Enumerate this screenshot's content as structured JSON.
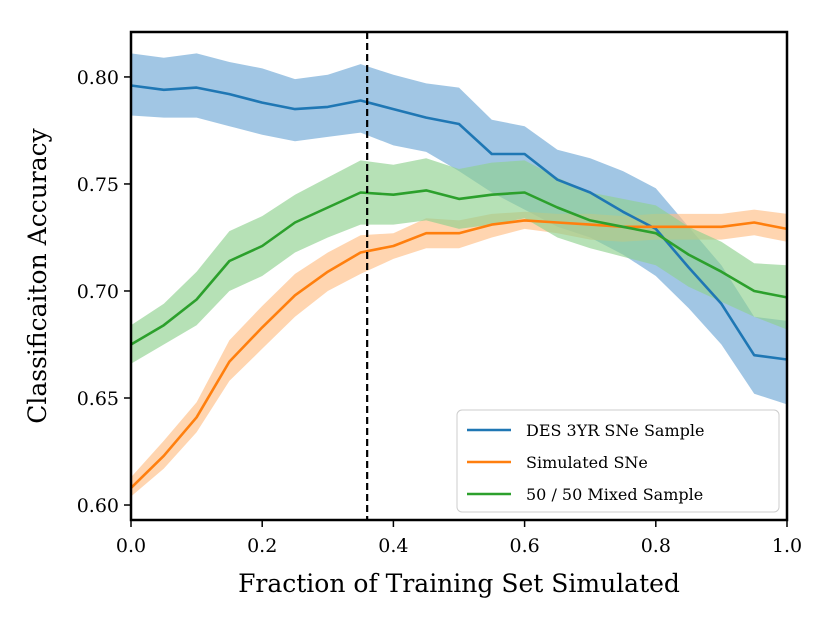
{
  "chart_data": {
    "type": "line",
    "title": "",
    "xlabel": "Fraction of Training Set Simulated",
    "ylabel": "Classificaiton Accuracy",
    "xlim": [
      0.0,
      1.0
    ],
    "ylim": [
      0.593,
      0.821
    ],
    "xticks": [
      0.0,
      0.2,
      0.4,
      0.6,
      0.8,
      1.0
    ],
    "xtick_labels": [
      "0.0",
      "0.2",
      "0.4",
      "0.6",
      "0.8",
      "1.0"
    ],
    "yticks": [
      0.6,
      0.65,
      0.7,
      0.75,
      0.8
    ],
    "ytick_labels": [
      "0.60",
      "0.65",
      "0.70",
      "0.75",
      "0.80"
    ],
    "grid": false,
    "legend_position": "lower-right",
    "vline": {
      "x": 0.36,
      "style": "dashed",
      "color": "#000000"
    },
    "x": [
      0.0,
      0.05,
      0.1,
      0.15,
      0.2,
      0.25,
      0.3,
      0.35,
      0.4,
      0.45,
      0.5,
      0.55,
      0.6,
      0.65,
      0.7,
      0.75,
      0.8,
      0.85,
      0.9,
      0.95,
      1.0
    ],
    "series": [
      {
        "name": "DES 3YR SNe Sample",
        "color": "#1f77b4",
        "fill_color": "#6fa8d6",
        "values": [
          0.796,
          0.794,
          0.795,
          0.792,
          0.788,
          0.785,
          0.786,
          0.789,
          0.785,
          0.781,
          0.778,
          0.764,
          0.764,
          0.752,
          0.746,
          0.737,
          0.729,
          0.711,
          0.694,
          0.67,
          0.668
        ],
        "lower": [
          0.782,
          0.781,
          0.781,
          0.777,
          0.773,
          0.77,
          0.772,
          0.774,
          0.768,
          0.765,
          0.756,
          0.746,
          0.738,
          0.73,
          0.725,
          0.717,
          0.707,
          0.692,
          0.675,
          0.652,
          0.647
        ],
        "upper": [
          0.811,
          0.809,
          0.811,
          0.807,
          0.804,
          0.799,
          0.801,
          0.806,
          0.801,
          0.797,
          0.795,
          0.78,
          0.777,
          0.766,
          0.762,
          0.756,
          0.748,
          0.73,
          0.712,
          0.688,
          0.686
        ]
      },
      {
        "name": "Simulated SNe",
        "color": "#ff7f0e",
        "fill_color": "#ffbf86",
        "values": [
          0.608,
          0.623,
          0.641,
          0.667,
          0.683,
          0.698,
          0.709,
          0.718,
          0.721,
          0.727,
          0.727,
          0.731,
          0.733,
          0.732,
          0.731,
          0.73,
          0.73,
          0.73,
          0.73,
          0.732,
          0.729
        ],
        "lower": [
          0.604,
          0.617,
          0.634,
          0.658,
          0.673,
          0.688,
          0.7,
          0.708,
          0.715,
          0.72,
          0.72,
          0.725,
          0.729,
          0.727,
          0.724,
          0.723,
          0.724,
          0.724,
          0.724,
          0.726,
          0.723
        ],
        "upper": [
          0.613,
          0.63,
          0.648,
          0.677,
          0.693,
          0.708,
          0.718,
          0.726,
          0.727,
          0.734,
          0.733,
          0.736,
          0.737,
          0.736,
          0.736,
          0.735,
          0.736,
          0.736,
          0.736,
          0.738,
          0.736
        ]
      },
      {
        "name": "50 / 50 Mixed Sample",
        "color": "#2ca02c",
        "fill_color": "#8fd18f",
        "values": [
          0.675,
          0.684,
          0.696,
          0.714,
          0.721,
          0.732,
          0.739,
          0.746,
          0.745,
          0.747,
          0.743,
          0.745,
          0.746,
          0.739,
          0.733,
          0.73,
          0.727,
          0.717,
          0.709,
          0.7,
          0.697
        ],
        "lower": [
          0.666,
          0.675,
          0.684,
          0.7,
          0.707,
          0.718,
          0.725,
          0.731,
          0.731,
          0.733,
          0.729,
          0.731,
          0.734,
          0.725,
          0.72,
          0.716,
          0.712,
          0.702,
          0.695,
          0.688,
          0.682
        ],
        "upper": [
          0.684,
          0.694,
          0.709,
          0.728,
          0.735,
          0.745,
          0.753,
          0.761,
          0.759,
          0.762,
          0.757,
          0.76,
          0.761,
          0.753,
          0.746,
          0.743,
          0.74,
          0.73,
          0.723,
          0.713,
          0.712
        ]
      }
    ]
  }
}
